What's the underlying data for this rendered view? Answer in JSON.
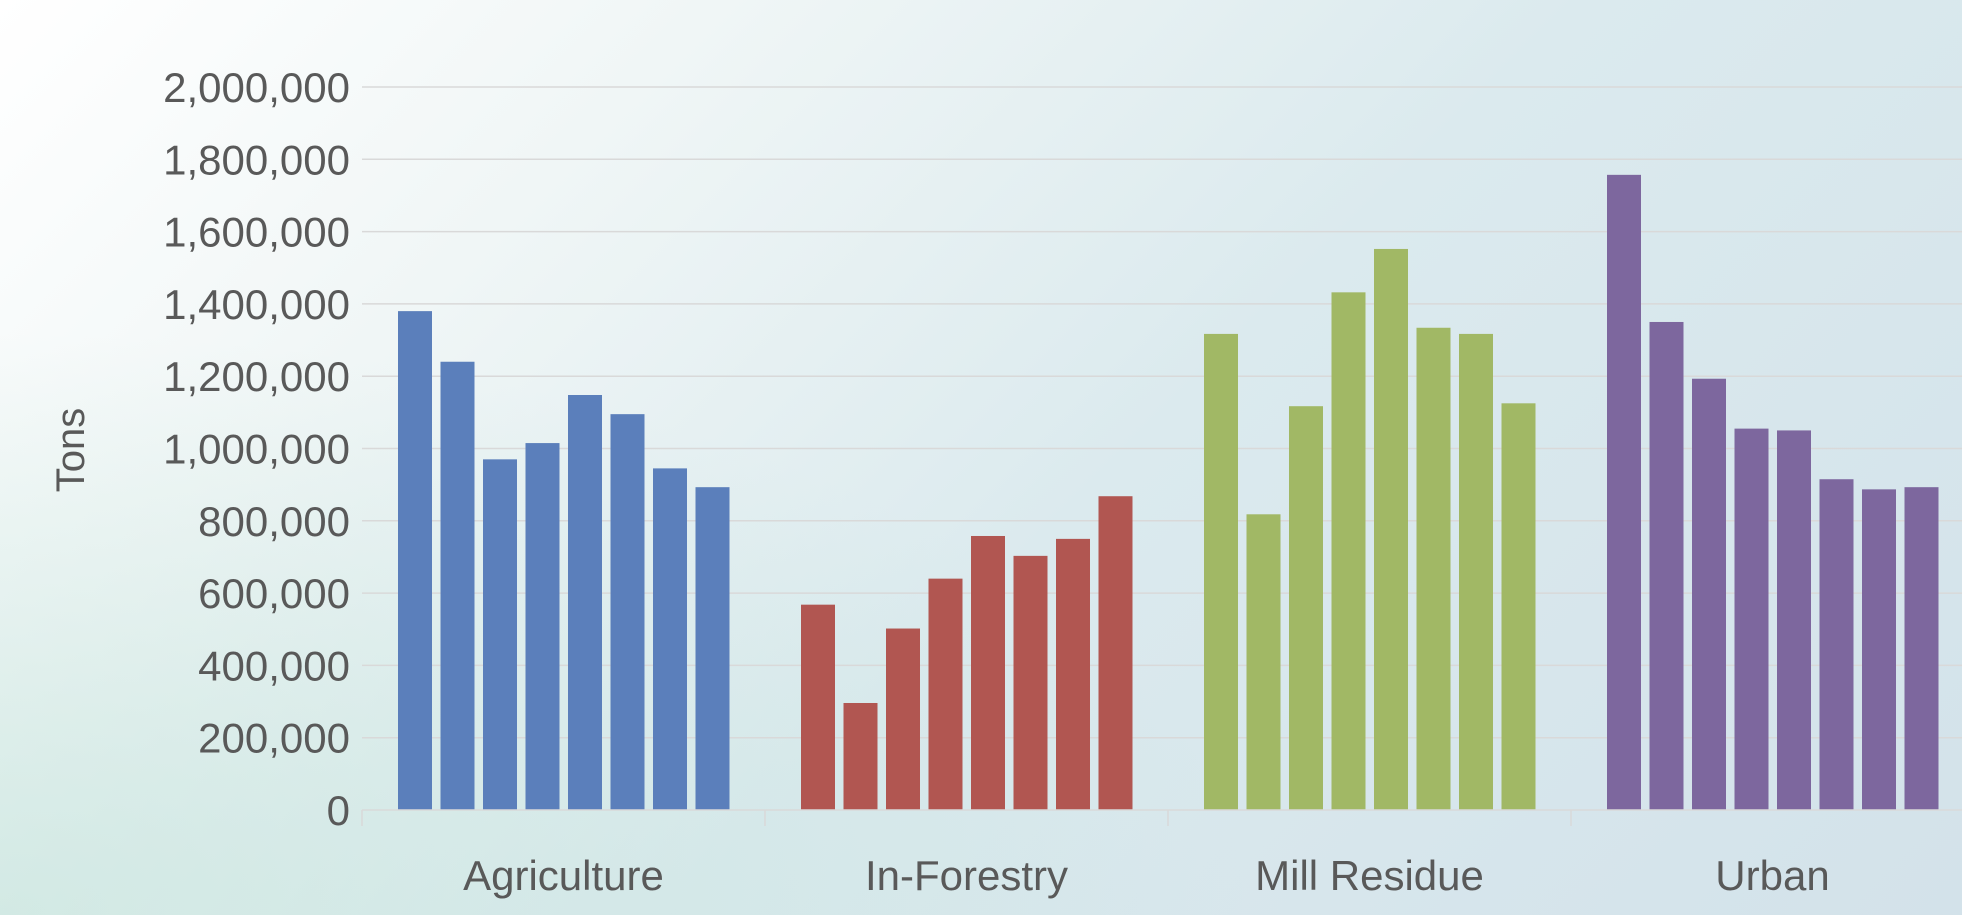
{
  "chart_data": {
    "type": "bar",
    "title": "",
    "xlabel": "",
    "ylabel": "Tons",
    "ylim": [
      0,
      2000000
    ],
    "yticks": [
      0,
      200000,
      400000,
      600000,
      800000,
      1000000,
      1200000,
      1400000,
      1600000,
      1800000,
      2000000
    ],
    "ytick_labels": [
      "0",
      "200,000",
      "400,000",
      "600,000",
      "800,000",
      "1,000,000",
      "1,200,000",
      "1,400,000",
      "1,600,000",
      "1,800,000",
      "2,000,000"
    ],
    "grid": true,
    "legend": "none",
    "categories": [
      "Agriculture",
      "In-Forestry",
      "Mill Residue",
      "Urban"
    ],
    "groups": [
      {
        "category": "Agriculture",
        "color": "#5B7FBB",
        "values": [
          1380000,
          1240000,
          970000,
          1015000,
          1148000,
          1095000,
          945000,
          893000
        ]
      },
      {
        "category": "In-Forestry",
        "color": "#B15651",
        "values": [
          568000,
          296000,
          502000,
          640000,
          758000,
          703000,
          750000,
          868000
        ]
      },
      {
        "category": "Mill Residue",
        "color": "#A1B865",
        "values": [
          1317000,
          818000,
          1117000,
          1432000,
          1552000,
          1334000,
          1317000,
          1125000
        ]
      },
      {
        "category": "Urban",
        "color": "#7D679E",
        "values": [
          1757000,
          1350000,
          1193000,
          1055000,
          1050000,
          915000,
          887000,
          893000
        ]
      }
    ]
  }
}
